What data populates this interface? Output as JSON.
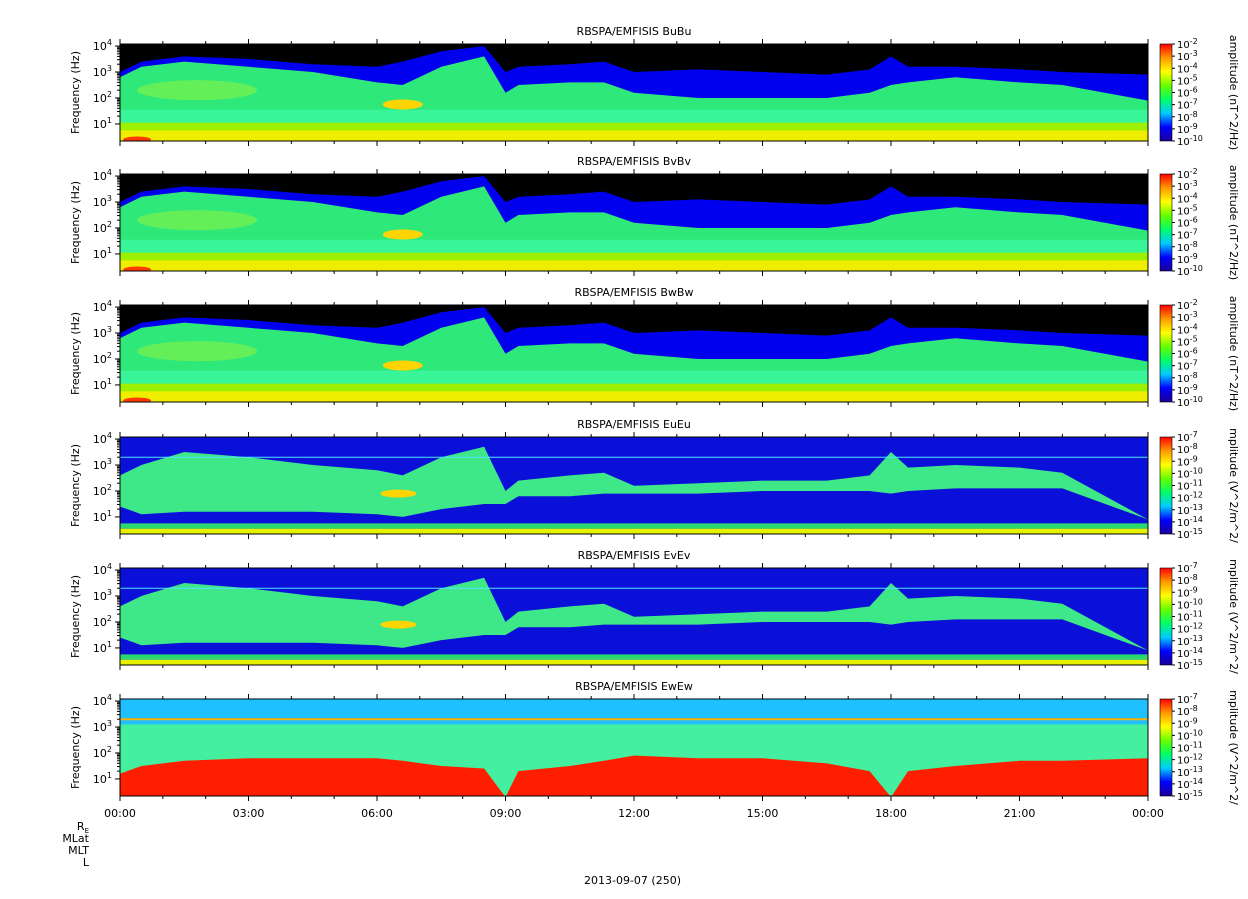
{
  "chart_data": [
    {
      "type": "heatmap",
      "title": "RBSPA/EMFISIS  BuBu",
      "ylabel": "Frequency (Hz)",
      "yscale": "log",
      "y_ticks": [
        "10",
        "10",
        "10",
        "10"
      ],
      "y_tick_exponents": [
        "1",
        "2",
        "3",
        "4"
      ],
      "colorbar_label": "amplitude (nT^2/Hz)",
      "colorbar_ticks": [
        "10",
        "10",
        "10",
        "10",
        "10",
        "10",
        "10",
        "10",
        "10"
      ],
      "colorbar_exponents": [
        "-2",
        "-3",
        "-4",
        "-5",
        "-6",
        "-7",
        "-8",
        "-9",
        "-10"
      ],
      "colorbar_range": [
        -10,
        -2
      ],
      "kind": "B"
    },
    {
      "type": "heatmap",
      "title": "RBSPA/EMFISIS  BvBv",
      "ylabel": "Frequency (Hz)",
      "yscale": "log",
      "y_ticks": [
        "10",
        "10",
        "10",
        "10"
      ],
      "y_tick_exponents": [
        "1",
        "2",
        "3",
        "4"
      ],
      "colorbar_label": "amplitude (nT^2/Hz)",
      "colorbar_ticks": [
        "10",
        "10",
        "10",
        "10",
        "10",
        "10",
        "10",
        "10",
        "10"
      ],
      "colorbar_exponents": [
        "-2",
        "-3",
        "-4",
        "-5",
        "-6",
        "-7",
        "-8",
        "-9",
        "-10"
      ],
      "colorbar_range": [
        -10,
        -2
      ],
      "kind": "B"
    },
    {
      "type": "heatmap",
      "title": "RBSPA/EMFISIS  BwBw",
      "ylabel": "Frequency (Hz)",
      "yscale": "log",
      "y_ticks": [
        "10",
        "10",
        "10",
        "10"
      ],
      "y_tick_exponents": [
        "1",
        "2",
        "3",
        "4"
      ],
      "colorbar_label": "amplitude (nT^2/Hz)",
      "colorbar_ticks": [
        "10",
        "10",
        "10",
        "10",
        "10",
        "10",
        "10",
        "10",
        "10"
      ],
      "colorbar_exponents": [
        "-2",
        "-3",
        "-4",
        "-5",
        "-6",
        "-7",
        "-8",
        "-9",
        "-10"
      ],
      "colorbar_range": [
        -10,
        -2
      ],
      "kind": "B"
    },
    {
      "type": "heatmap",
      "title": "RBSPA/EMFISIS  EuEu",
      "ylabel": "Frequency (Hz)",
      "yscale": "log",
      "y_ticks": [
        "10",
        "10",
        "10",
        "10"
      ],
      "y_tick_exponents": [
        "1",
        "2",
        "3",
        "4"
      ],
      "colorbar_label": "mplitude (V^2/m^2/",
      "colorbar_ticks": [
        "10",
        "10",
        "10",
        "10",
        "10",
        "10",
        "10",
        "10",
        "10"
      ],
      "colorbar_exponents": [
        "-7",
        "-8",
        "-9",
        "-10",
        "-11",
        "-12",
        "-13",
        "-14",
        "-15"
      ],
      "colorbar_range": [
        -15,
        -7
      ],
      "kind": "E"
    },
    {
      "type": "heatmap",
      "title": "RBSPA/EMFISIS  EvEv",
      "ylabel": "Frequency (Hz)",
      "yscale": "log",
      "y_ticks": [
        "10",
        "10",
        "10",
        "10"
      ],
      "y_tick_exponents": [
        "1",
        "2",
        "3",
        "4"
      ],
      "colorbar_label": "mplitude (V^2/m^2/",
      "colorbar_ticks": [
        "10",
        "10",
        "10",
        "10",
        "10",
        "10",
        "10",
        "10",
        "10"
      ],
      "colorbar_exponents": [
        "-7",
        "-8",
        "-9",
        "-10",
        "-11",
        "-12",
        "-13",
        "-14",
        "-15"
      ],
      "colorbar_range": [
        -15,
        -7
      ],
      "kind": "E"
    },
    {
      "type": "heatmap",
      "title": "RBSPA/EMFISIS  EwEw",
      "ylabel": "Frequency (Hz)",
      "yscale": "log",
      "y_ticks": [
        "10",
        "10",
        "10",
        "10"
      ],
      "y_tick_exponents": [
        "1",
        "2",
        "3",
        "4"
      ],
      "colorbar_label": "mplitude (V^2/m^2/",
      "colorbar_ticks": [
        "10",
        "10",
        "10",
        "10",
        "10",
        "10",
        "10",
        "10",
        "10"
      ],
      "colorbar_exponents": [
        "-7",
        "-8",
        "-9",
        "-10",
        "-11",
        "-12",
        "-13",
        "-14",
        "-15"
      ],
      "colorbar_range": [
        -15,
        -7
      ],
      "kind": "Ew"
    }
  ],
  "x_axis": {
    "tick_labels": [
      "00:00",
      "03:00",
      "06:00",
      "09:00",
      "12:00",
      "15:00",
      "18:00",
      "21:00",
      "00:00"
    ],
    "range_hours": [
      0,
      24
    ],
    "date_label": "2013-09-07 (250)",
    "ephemeris_labels": [
      "R",
      "MLat",
      "MLT",
      "L"
    ],
    "re_subscript": "E"
  },
  "colors": {
    "background": "#ffffff",
    "spectrogram_empty": "#000000",
    "colormap": [
      "#1a0099",
      "#0000ff",
      "#00ccff",
      "#00ff66",
      "#66ff00",
      "#ffff00",
      "#ff9900",
      "#ff0000"
    ]
  }
}
